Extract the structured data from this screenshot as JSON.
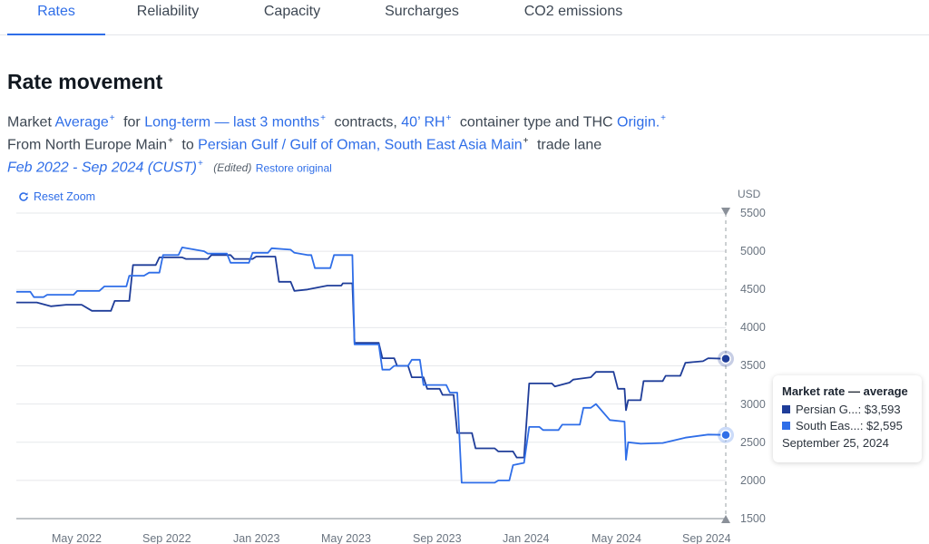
{
  "tabs": [
    {
      "label": "Rates",
      "active": true
    },
    {
      "label": "Reliability"
    },
    {
      "label": "Capacity"
    },
    {
      "label": "Surcharges"
    },
    {
      "label": "CO2 emissions"
    }
  ],
  "title": "Rate movement",
  "description": {
    "market_prefix": "Market",
    "market_value": "Average",
    "for_text": "for",
    "term_value": "Long-term — last 3 months",
    "contracts_text": "contracts,",
    "container_value": "40’ RH",
    "container_suffix": "container type and THC",
    "thc_value": "Origin.",
    "from_text": "From",
    "origin_value": "North Europe Main",
    "to_text": "to",
    "destination_value": "Persian Gulf / Gulf of Oman, South East Asia Main",
    "lane_text": "trade lane",
    "date_range": "Feb 2022 - Sep 2024 (CUST)",
    "edited_text": "(Edited)",
    "restore_text": "Restore original"
  },
  "plus_glyph": "+",
  "reset_zoom_label": "Reset Zoom",
  "icons": {
    "reset_zoom": "refresh-icon"
  },
  "tooltip": {
    "title": "Market rate — average",
    "rows": [
      {
        "label": "Persian G...: $3,593",
        "color": "#1f3d99"
      },
      {
        "label": "South Eas...: $2,595",
        "color": "#2f6ee8"
      }
    ],
    "date": "September 25, 2024"
  },
  "chart_data": {
    "type": "line",
    "unit": "USD",
    "ylim": [
      1500,
      5500
    ],
    "yticks": [
      "5500",
      "5000",
      "4500",
      "4000",
      "3500",
      "3000",
      "2500",
      "2000",
      "1500"
    ],
    "xticks": [
      "May 2022",
      "Sep 2022",
      "Jan 2023",
      "May 2023",
      "Sep 2023",
      "Jan 2024",
      "May 2024",
      "Sep 2024"
    ],
    "grid": true,
    "colors": {
      "series_dark": "#1f3d99",
      "series_light": "#2f6ee8",
      "grid": "#e6e8eb",
      "crosshair": "#9aa0a6"
    },
    "series": [
      {
        "name": "Persian G...",
        "color": "#1f3d99",
        "points": [
          [
            "2022-02-01",
            4330
          ],
          [
            "2022-03-01",
            4330
          ],
          [
            "2022-03-20",
            4280
          ],
          [
            "2022-04-10",
            4300
          ],
          [
            "2022-05-01",
            4300
          ],
          [
            "2022-05-15",
            4220
          ],
          [
            "2022-06-10",
            4220
          ],
          [
            "2022-06-15",
            4350
          ],
          [
            "2022-07-05",
            4350
          ],
          [
            "2022-07-10",
            4820
          ],
          [
            "2022-08-10",
            4820
          ],
          [
            "2022-08-15",
            4920
          ],
          [
            "2022-09-15",
            4920
          ],
          [
            "2022-09-20",
            4900
          ],
          [
            "2022-10-20",
            4900
          ],
          [
            "2022-10-25",
            4950
          ],
          [
            "2022-11-20",
            4950
          ],
          [
            "2022-11-25",
            4900
          ],
          [
            "2022-12-20",
            4900
          ],
          [
            "2022-12-25",
            4930
          ],
          [
            "2023-01-20",
            4930
          ],
          [
            "2023-01-25",
            4600
          ],
          [
            "2023-02-10",
            4600
          ],
          [
            "2023-02-15",
            4480
          ],
          [
            "2023-03-05",
            4500
          ],
          [
            "2023-04-01",
            4550
          ],
          [
            "2023-04-20",
            4550
          ],
          [
            "2023-04-22",
            4580
          ],
          [
            "2023-05-05",
            4580
          ],
          [
            "2023-05-08",
            3800
          ],
          [
            "2023-06-10",
            3800
          ],
          [
            "2023-06-15",
            3600
          ],
          [
            "2023-07-01",
            3600
          ],
          [
            "2023-07-05",
            3500
          ],
          [
            "2023-07-20",
            3500
          ],
          [
            "2023-07-25",
            3350
          ],
          [
            "2023-08-10",
            3350
          ],
          [
            "2023-08-15",
            3200
          ],
          [
            "2023-09-01",
            3200
          ],
          [
            "2023-09-05",
            3120
          ],
          [
            "2023-09-20",
            3120
          ],
          [
            "2023-09-25",
            2620
          ],
          [
            "2023-10-15",
            2620
          ],
          [
            "2023-10-20",
            2420
          ],
          [
            "2023-11-15",
            2420
          ],
          [
            "2023-11-20",
            2380
          ],
          [
            "2023-12-10",
            2380
          ],
          [
            "2023-12-15",
            2300
          ],
          [
            "2023-12-25",
            2300
          ],
          [
            "2024-01-01",
            3270
          ],
          [
            "2024-02-01",
            3270
          ],
          [
            "2024-02-05",
            3230
          ],
          [
            "2024-02-25",
            3280
          ],
          [
            "2024-03-01",
            3320
          ],
          [
            "2024-03-25",
            3350
          ],
          [
            "2024-04-01",
            3420
          ],
          [
            "2024-04-25",
            3420
          ],
          [
            "2024-05-01",
            3200
          ],
          [
            "2024-05-10",
            3200
          ],
          [
            "2024-05-12",
            2920
          ],
          [
            "2024-05-15",
            3050
          ],
          [
            "2024-06-01",
            3050
          ],
          [
            "2024-06-05",
            3300
          ],
          [
            "2024-07-01",
            3300
          ],
          [
            "2024-07-05",
            3370
          ],
          [
            "2024-07-25",
            3370
          ],
          [
            "2024-08-01",
            3540
          ],
          [
            "2024-08-25",
            3560
          ],
          [
            "2024-09-01",
            3600
          ],
          [
            "2024-09-25",
            3593
          ]
        ]
      },
      {
        "name": "South Eas...",
        "color": "#2f6ee8",
        "points": [
          [
            "2022-02-01",
            4470
          ],
          [
            "2022-02-20",
            4470
          ],
          [
            "2022-02-25",
            4400
          ],
          [
            "2022-03-10",
            4400
          ],
          [
            "2022-03-15",
            4430
          ],
          [
            "2022-04-20",
            4430
          ],
          [
            "2022-04-25",
            4480
          ],
          [
            "2022-05-25",
            4480
          ],
          [
            "2022-06-01",
            4540
          ],
          [
            "2022-07-01",
            4540
          ],
          [
            "2022-07-05",
            4680
          ],
          [
            "2022-07-25",
            4680
          ],
          [
            "2022-08-01",
            4720
          ],
          [
            "2022-08-15",
            4720
          ],
          [
            "2022-08-20",
            4950
          ],
          [
            "2022-09-10",
            4950
          ],
          [
            "2022-09-15",
            5050
          ],
          [
            "2022-10-15",
            5000
          ],
          [
            "2022-10-20",
            4970
          ],
          [
            "2022-11-15",
            4970
          ],
          [
            "2022-11-20",
            4850
          ],
          [
            "2022-12-15",
            4850
          ],
          [
            "2022-12-20",
            4980
          ],
          [
            "2023-01-10",
            4980
          ],
          [
            "2023-01-15",
            5040
          ],
          [
            "2023-02-10",
            5020
          ],
          [
            "2023-02-15",
            4980
          ],
          [
            "2023-03-05",
            4950
          ],
          [
            "2023-03-10",
            4950
          ],
          [
            "2023-03-15",
            4780
          ],
          [
            "2023-04-05",
            4780
          ],
          [
            "2023-04-10",
            4950
          ],
          [
            "2023-05-05",
            4950
          ],
          [
            "2023-05-08",
            3780
          ],
          [
            "2023-06-10",
            3780
          ],
          [
            "2023-06-15",
            3450
          ],
          [
            "2023-06-25",
            3450
          ],
          [
            "2023-07-01",
            3500
          ],
          [
            "2023-07-20",
            3500
          ],
          [
            "2023-07-25",
            3580
          ],
          [
            "2023-08-05",
            3580
          ],
          [
            "2023-08-10",
            3250
          ],
          [
            "2023-09-10",
            3250
          ],
          [
            "2023-09-15",
            3150
          ],
          [
            "2023-09-25",
            3150
          ],
          [
            "2023-10-01",
            1970
          ],
          [
            "2023-11-15",
            1970
          ],
          [
            "2023-11-20",
            2000
          ],
          [
            "2023-12-05",
            2000
          ],
          [
            "2023-12-10",
            2200
          ],
          [
            "2023-12-25",
            2230
          ],
          [
            "2024-01-01",
            2700
          ],
          [
            "2024-01-15",
            2700
          ],
          [
            "2024-01-20",
            2660
          ],
          [
            "2024-02-10",
            2660
          ],
          [
            "2024-02-15",
            2730
          ],
          [
            "2024-03-10",
            2730
          ],
          [
            "2024-03-15",
            2950
          ],
          [
            "2024-03-25",
            2950
          ],
          [
            "2024-04-01",
            3000
          ],
          [
            "2024-04-20",
            2790
          ],
          [
            "2024-05-10",
            2770
          ],
          [
            "2024-05-12",
            2270
          ],
          [
            "2024-05-15",
            2500
          ],
          [
            "2024-06-01",
            2480
          ],
          [
            "2024-07-01",
            2490
          ],
          [
            "2024-08-01",
            2560
          ],
          [
            "2024-09-01",
            2600
          ],
          [
            "2024-09-25",
            2595
          ]
        ]
      }
    ]
  }
}
